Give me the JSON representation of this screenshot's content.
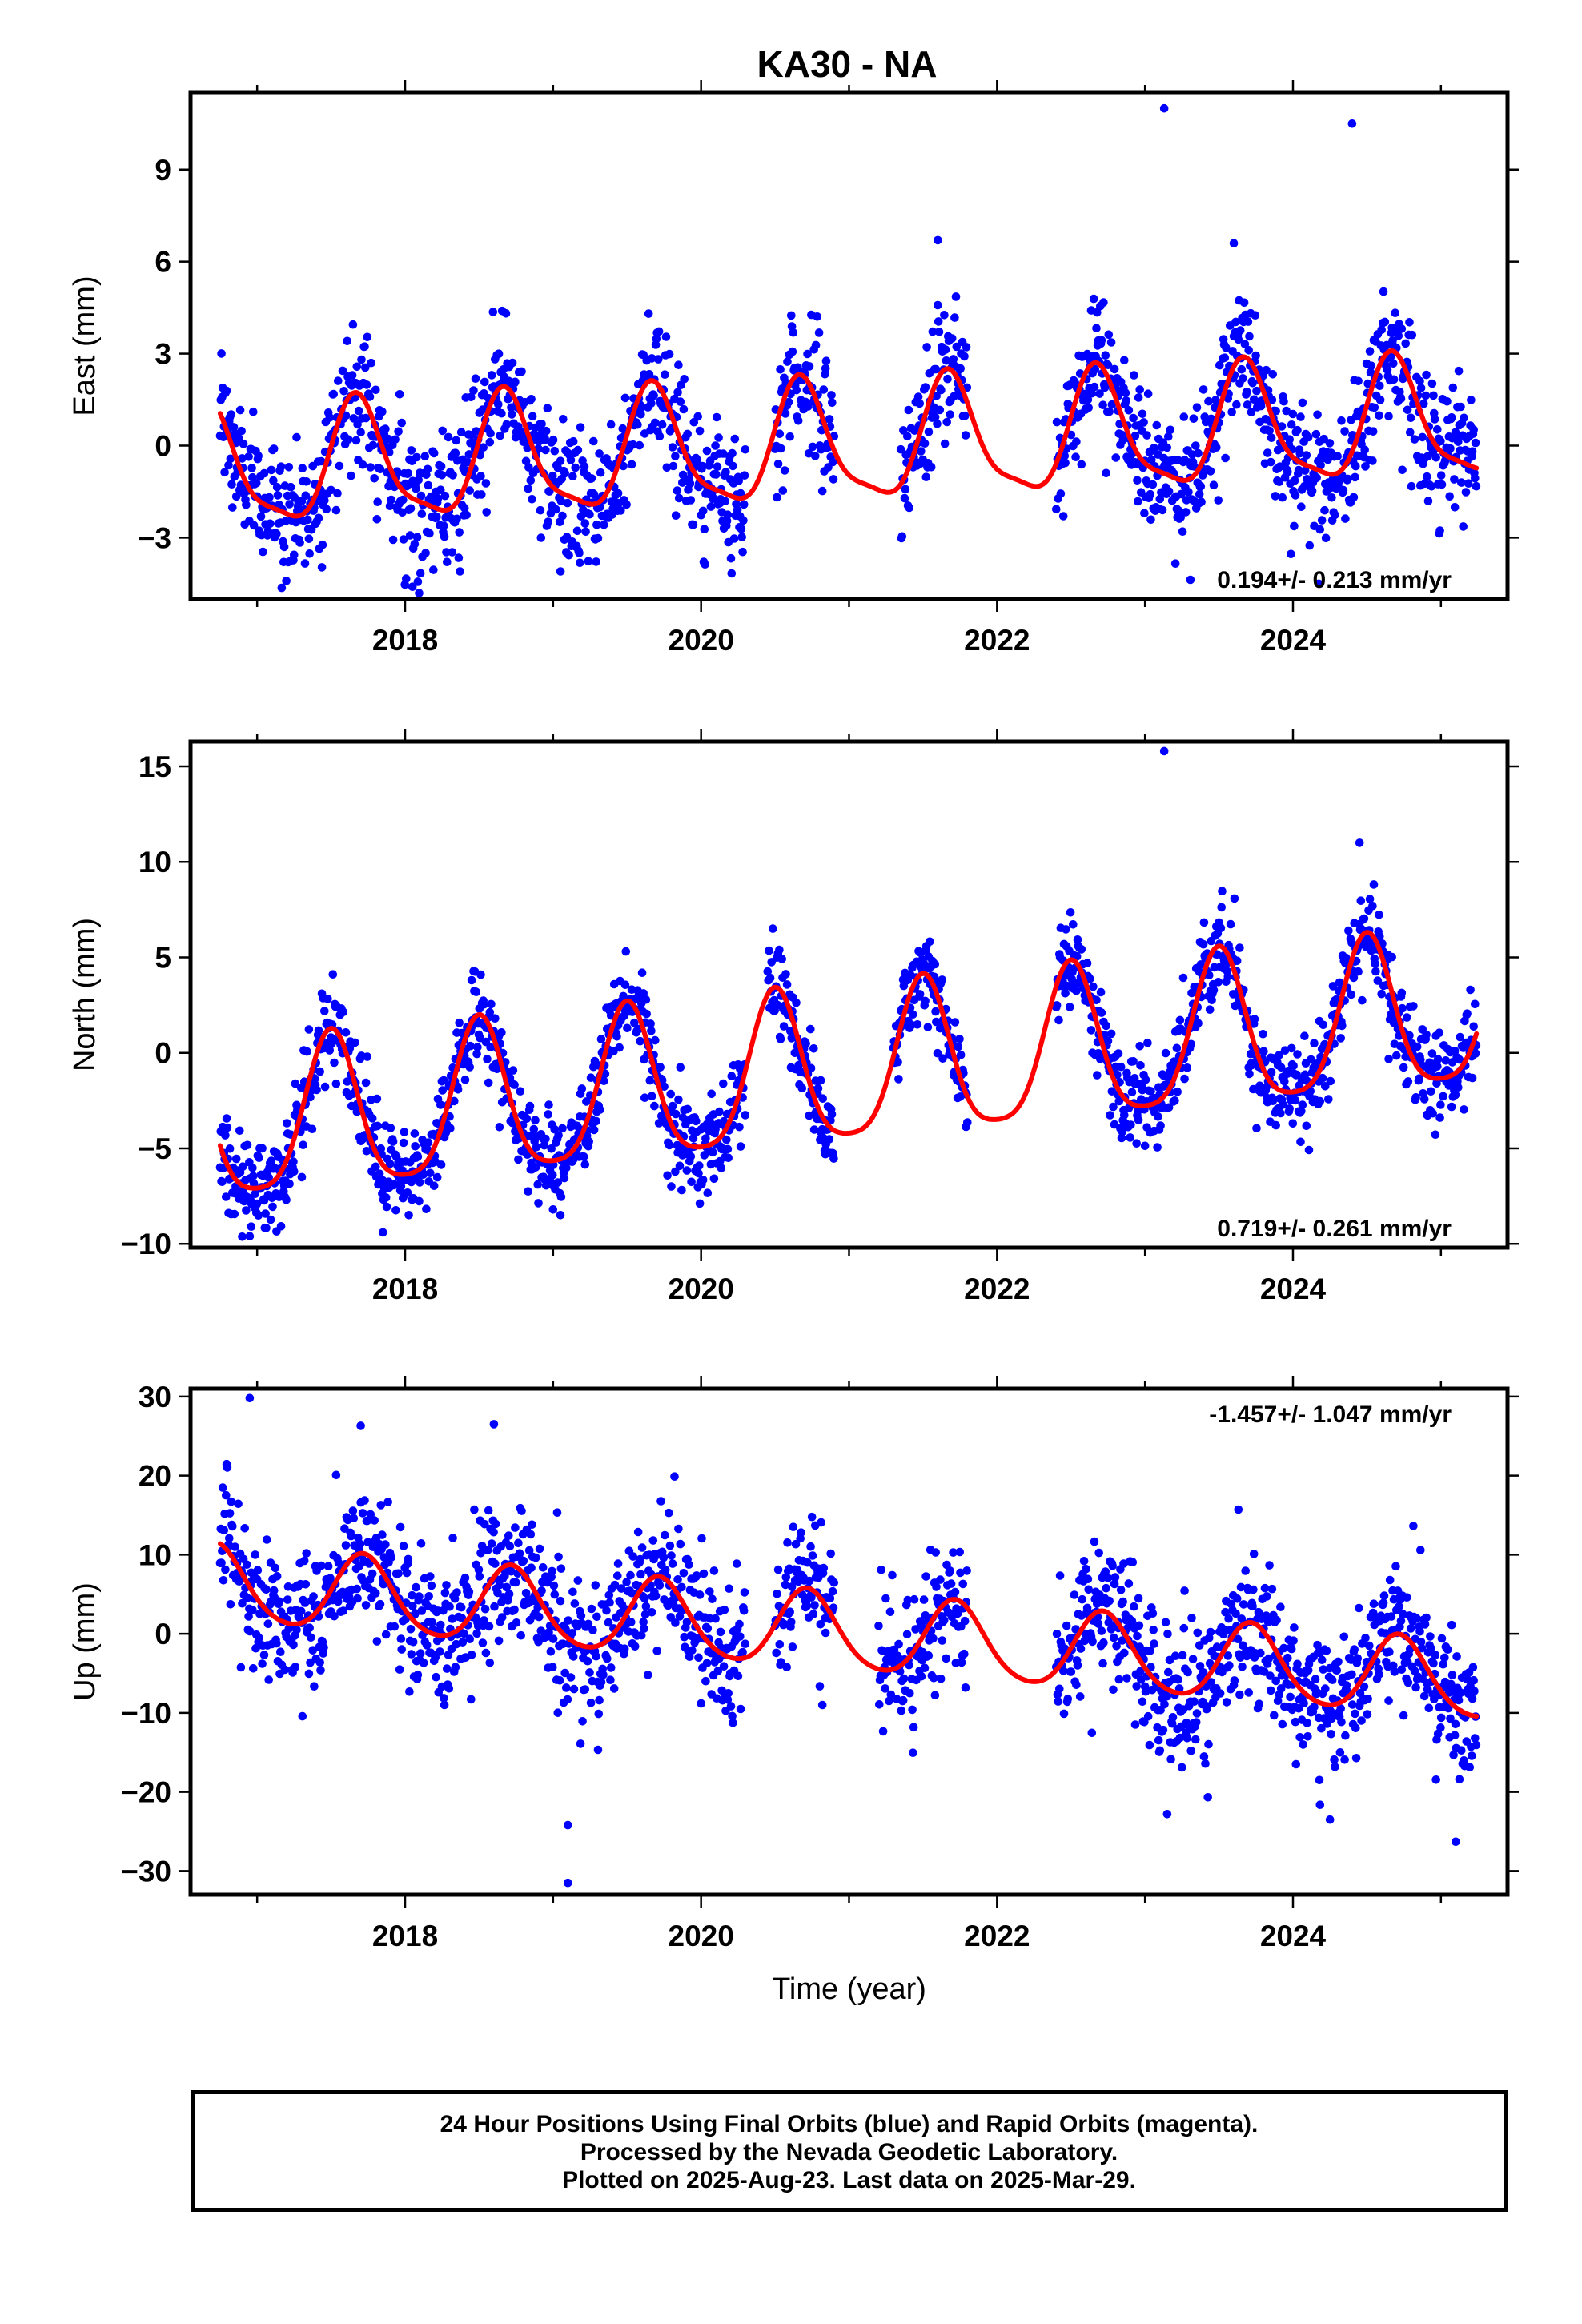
{
  "title": "KA30 - NA",
  "footer": {
    "line1": "24 Hour Positions Using Final Orbits (blue) and Rapid Orbits (magenta).",
    "line2": "Processed by the Nevada Geodetic Laboratory.",
    "line3": "Plotted on 2025-Aug-23. Last data on 2025-Mar-29."
  },
  "colors": {
    "observations": "#0000ff",
    "fit": "#ff0000",
    "frame": "#000000"
  },
  "chart_data": [
    {
      "type": "scatter",
      "component": "East",
      "ylabel": "East (mm)",
      "xlabel": "",
      "xlim": [
        2016.55,
        2025.45
      ],
      "ylim": [
        -5.0,
        11.5
      ],
      "yticks": [
        -3,
        0,
        3,
        6,
        9
      ],
      "xticks": [
        2018,
        2020,
        2022,
        2024
      ],
      "rate_label": "0.194+/- 0.213 mm/yr",
      "rate_position": "bottom-right",
      "model": {
        "mean": 0.0,
        "trend_mm_per_yr": 0.194,
        "annual_amp": 1.9,
        "annual_peak_frac": 0.68,
        "semiannual_amp": 0.5,
        "semiannual_phase_frac": 0.15
      },
      "noise_sd": 1.1,
      "data_segments": [
        [
          2016.75,
          2020.3
        ],
        [
          2020.5,
          2020.9
        ],
        [
          2021.35,
          2021.8
        ],
        [
          2022.4,
          2025.24
        ]
      ],
      "outliers": [
        [
          2023.13,
          11.0
        ],
        [
          2024.4,
          10.5
        ],
        [
          2023.6,
          6.6
        ],
        [
          2021.6,
          6.7
        ],
        [
          2018.05,
          -4.6
        ],
        [
          2019.05,
          -4.1
        ]
      ]
    },
    {
      "type": "scatter",
      "component": "North",
      "ylabel": "North (mm)",
      "xlabel": "",
      "xlim": [
        2016.55,
        2025.45
      ],
      "ylim": [
        -10.2,
        16.3
      ],
      "yticks": [
        -10,
        -5,
        0,
        5,
        10,
        15
      ],
      "xticks": [
        2018,
        2020,
        2022,
        2024
      ],
      "rate_label": "0.719+/- 0.261 mm/yr",
      "rate_position": "bottom-right",
      "model": {
        "mean": -1.0,
        "trend_mm_per_yr": 0.719,
        "annual_amp": 4.0,
        "annual_peak_frac": 0.5,
        "semiannual_amp": 0.8,
        "semiannual_phase_frac": 0.0
      },
      "noise_sd": 1.2,
      "data_segments": [
        [
          2016.75,
          2020.3
        ],
        [
          2020.45,
          2020.9
        ],
        [
          2021.3,
          2021.8
        ],
        [
          2022.4,
          2025.24
        ]
      ],
      "outliers": [
        [
          2023.13,
          15.8
        ],
        [
          2024.45,
          11.0
        ],
        [
          2016.95,
          -9.6
        ],
        [
          2017.85,
          -9.4
        ],
        [
          2019.0,
          -8.2
        ]
      ]
    },
    {
      "type": "scatter",
      "component": "Up",
      "ylabel": "Up (mm)",
      "xlabel": "Time (year)",
      "xlim": [
        2016.55,
        2025.45
      ],
      "ylim": [
        -33.0,
        31.0
      ],
      "yticks": [
        -30,
        -20,
        -10,
        0,
        10,
        20,
        30
      ],
      "xticks": [
        2018,
        2020,
        2022,
        2024
      ],
      "rate_label": "-1.457+/- 1.047 mm/yr",
      "rate_position": "top-right",
      "model": {
        "mean": 0.0,
        "trend_mm_per_yr": -1.457,
        "annual_amp": 4.8,
        "annual_peak_frac": 0.72,
        "semiannual_amp": 0.6,
        "semiannual_phase_frac": 0.2
      },
      "noise_sd": 4.5,
      "data_segments": [
        [
          2016.75,
          2020.3
        ],
        [
          2020.5,
          2020.9
        ],
        [
          2021.2,
          2021.8
        ],
        [
          2022.4,
          2025.24
        ]
      ],
      "outliers": [
        [
          2016.95,
          29.8
        ],
        [
          2017.7,
          26.3
        ],
        [
          2018.6,
          26.5
        ],
        [
          2019.1,
          -31.5
        ],
        [
          2019.1,
          -24.2
        ],
        [
          2023.15,
          -22.8
        ],
        [
          2024.25,
          -23.5
        ],
        [
          2025.1,
          -26.3
        ]
      ]
    }
  ]
}
